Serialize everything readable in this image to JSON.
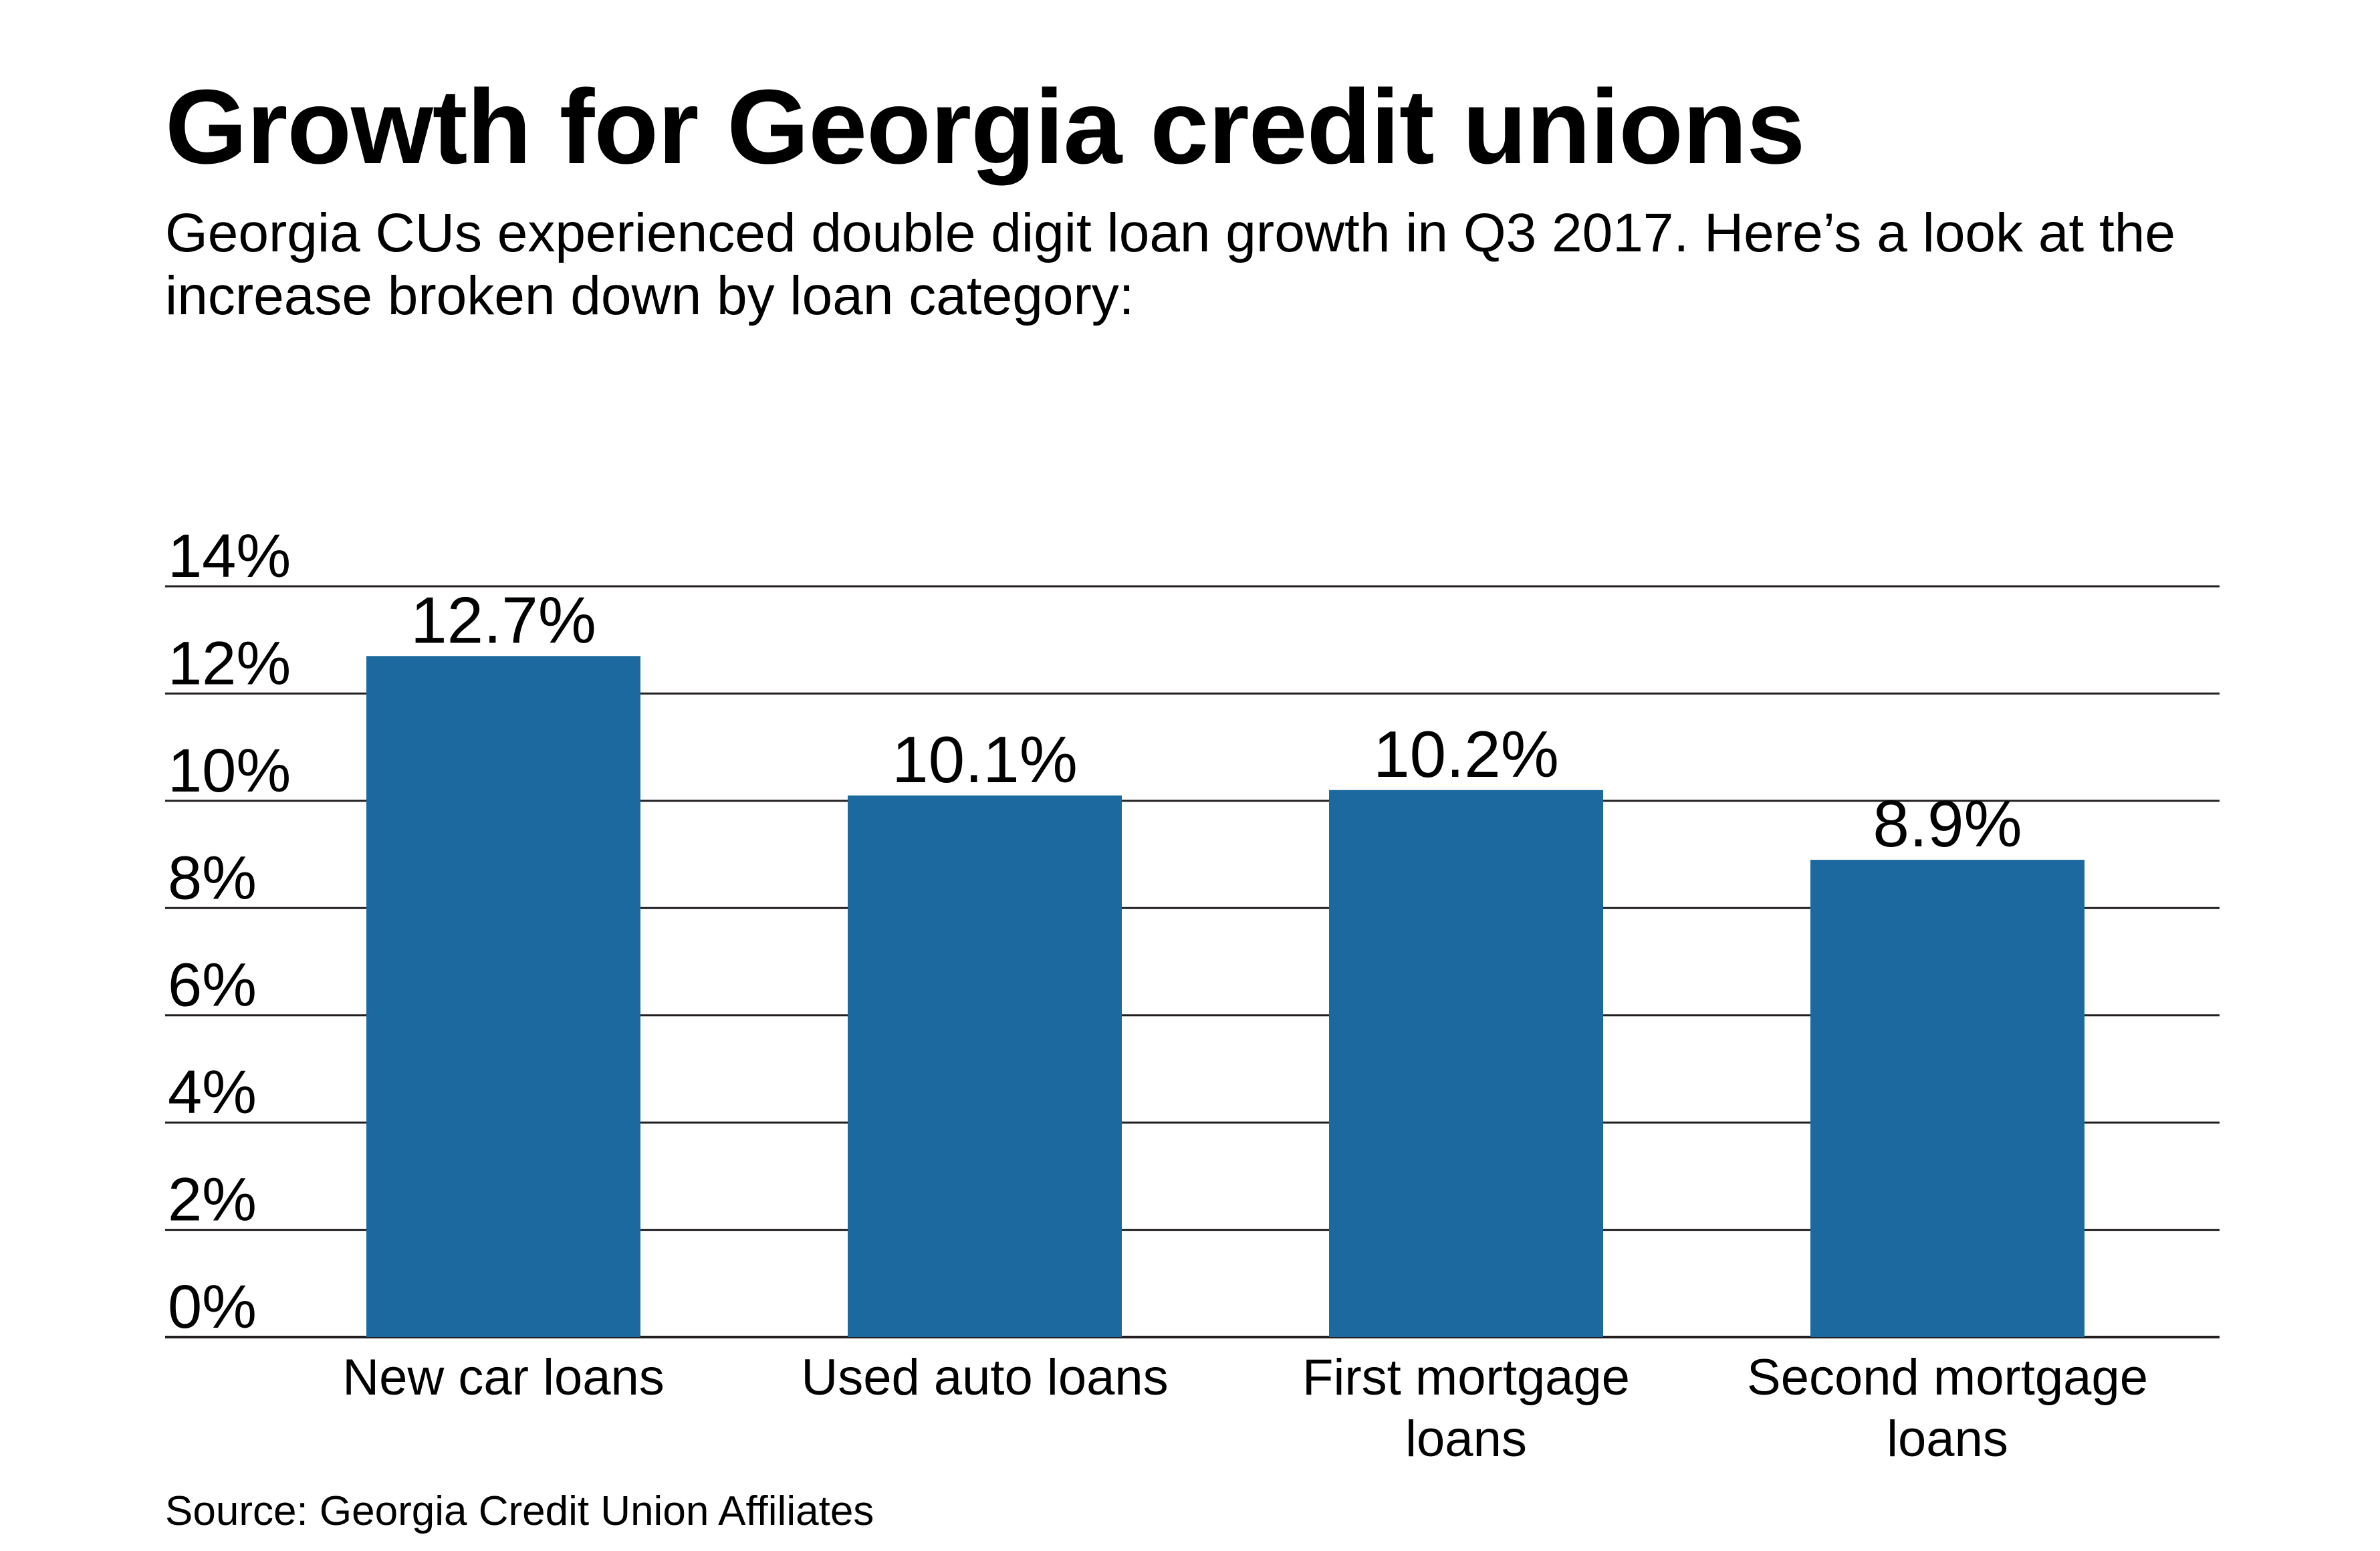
{
  "title": "Growth for Georgia credit unions",
  "subtitle": "Georgia CUs experienced double digit loan growth in Q3 2017. Here’s a look at the increase broken down by loan category:",
  "source": "Source: Georgia Credit Union Affiliates",
  "colors": {
    "bar": "#1c69a0",
    "grid": "#231f20",
    "text": "#000000"
  },
  "chart_data": {
    "type": "bar",
    "categories": [
      [
        "New car loans"
      ],
      [
        "Used auto loans"
      ],
      [
        "First mortgage",
        "loans"
      ],
      [
        "Second mortgage",
        "loans"
      ]
    ],
    "values": [
      12.7,
      10.1,
      10.2,
      8.9
    ],
    "value_labels": [
      "12.7%",
      "10.1%",
      "10.2%",
      "8.9%"
    ],
    "yticks": [
      0,
      2,
      4,
      6,
      8,
      10,
      12,
      14
    ],
    "ytick_labels": [
      "0%",
      "2%",
      "4%",
      "6%",
      "8%",
      "10%",
      "12%",
      "14%"
    ],
    "ylim": [
      0,
      14
    ],
    "grid": true,
    "legend": "none",
    "xlabel": "",
    "ylabel": ""
  }
}
